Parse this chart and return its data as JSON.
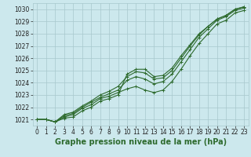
{
  "xlabel": "Graphe pression niveau de la mer (hPa)",
  "x": [
    0,
    1,
    2,
    3,
    4,
    5,
    6,
    7,
    8,
    9,
    10,
    11,
    12,
    13,
    14,
    15,
    16,
    17,
    18,
    19,
    20,
    21,
    22,
    23
  ],
  "series": [
    [
      1021.0,
      1021.0,
      1020.8,
      1021.1,
      1021.2,
      1021.7,
      1022.0,
      1022.5,
      1022.7,
      1023.0,
      1024.7,
      1025.1,
      1025.1,
      1024.5,
      1024.6,
      1025.2,
      1026.2,
      1027.1,
      1028.0,
      1028.6,
      1029.2,
      1029.5,
      1030.0,
      1030.2
    ],
    [
      1021.0,
      1021.0,
      1020.8,
      1021.2,
      1021.4,
      1021.9,
      1022.2,
      1022.7,
      1022.9,
      1023.2,
      1023.5,
      1023.7,
      1023.4,
      1023.2,
      1023.4,
      1024.1,
      1025.1,
      1026.2,
      1027.2,
      1028.0,
      1028.8,
      1029.1,
      1029.7,
      1029.9
    ],
    [
      1021.0,
      1021.0,
      1020.8,
      1021.3,
      1021.5,
      1022.0,
      1022.4,
      1022.8,
      1023.1,
      1023.4,
      1024.2,
      1024.5,
      1024.3,
      1023.9,
      1024.1,
      1024.7,
      1025.7,
      1026.7,
      1027.7,
      1028.4,
      1029.1,
      1029.4,
      1029.9,
      1030.1
    ],
    [
      1021.0,
      1021.0,
      1020.8,
      1021.4,
      1021.6,
      1022.1,
      1022.5,
      1023.0,
      1023.3,
      1023.7,
      1024.5,
      1024.9,
      1024.8,
      1024.3,
      1024.4,
      1025.0,
      1026.0,
      1027.0,
      1027.9,
      1028.6,
      1029.2,
      1029.5,
      1030.0,
      1030.2
    ]
  ],
  "line_color": "#2d6a2d",
  "marker": "+",
  "markersize": 3,
  "linewidth": 0.8,
  "bg_color": "#cce8ed",
  "grid_color": "#a8c8cc",
  "ylim": [
    1020.5,
    1030.5
  ],
  "xlim": [
    -0.5,
    23.5
  ],
  "yticks": [
    1021,
    1022,
    1023,
    1024,
    1025,
    1026,
    1027,
    1028,
    1029,
    1030
  ],
  "xticks": [
    0,
    1,
    2,
    3,
    4,
    5,
    6,
    7,
    8,
    9,
    10,
    11,
    12,
    13,
    14,
    15,
    16,
    17,
    18,
    19,
    20,
    21,
    22,
    23
  ],
  "tick_fontsize": 5.5,
  "xlabel_fontsize": 7.0
}
